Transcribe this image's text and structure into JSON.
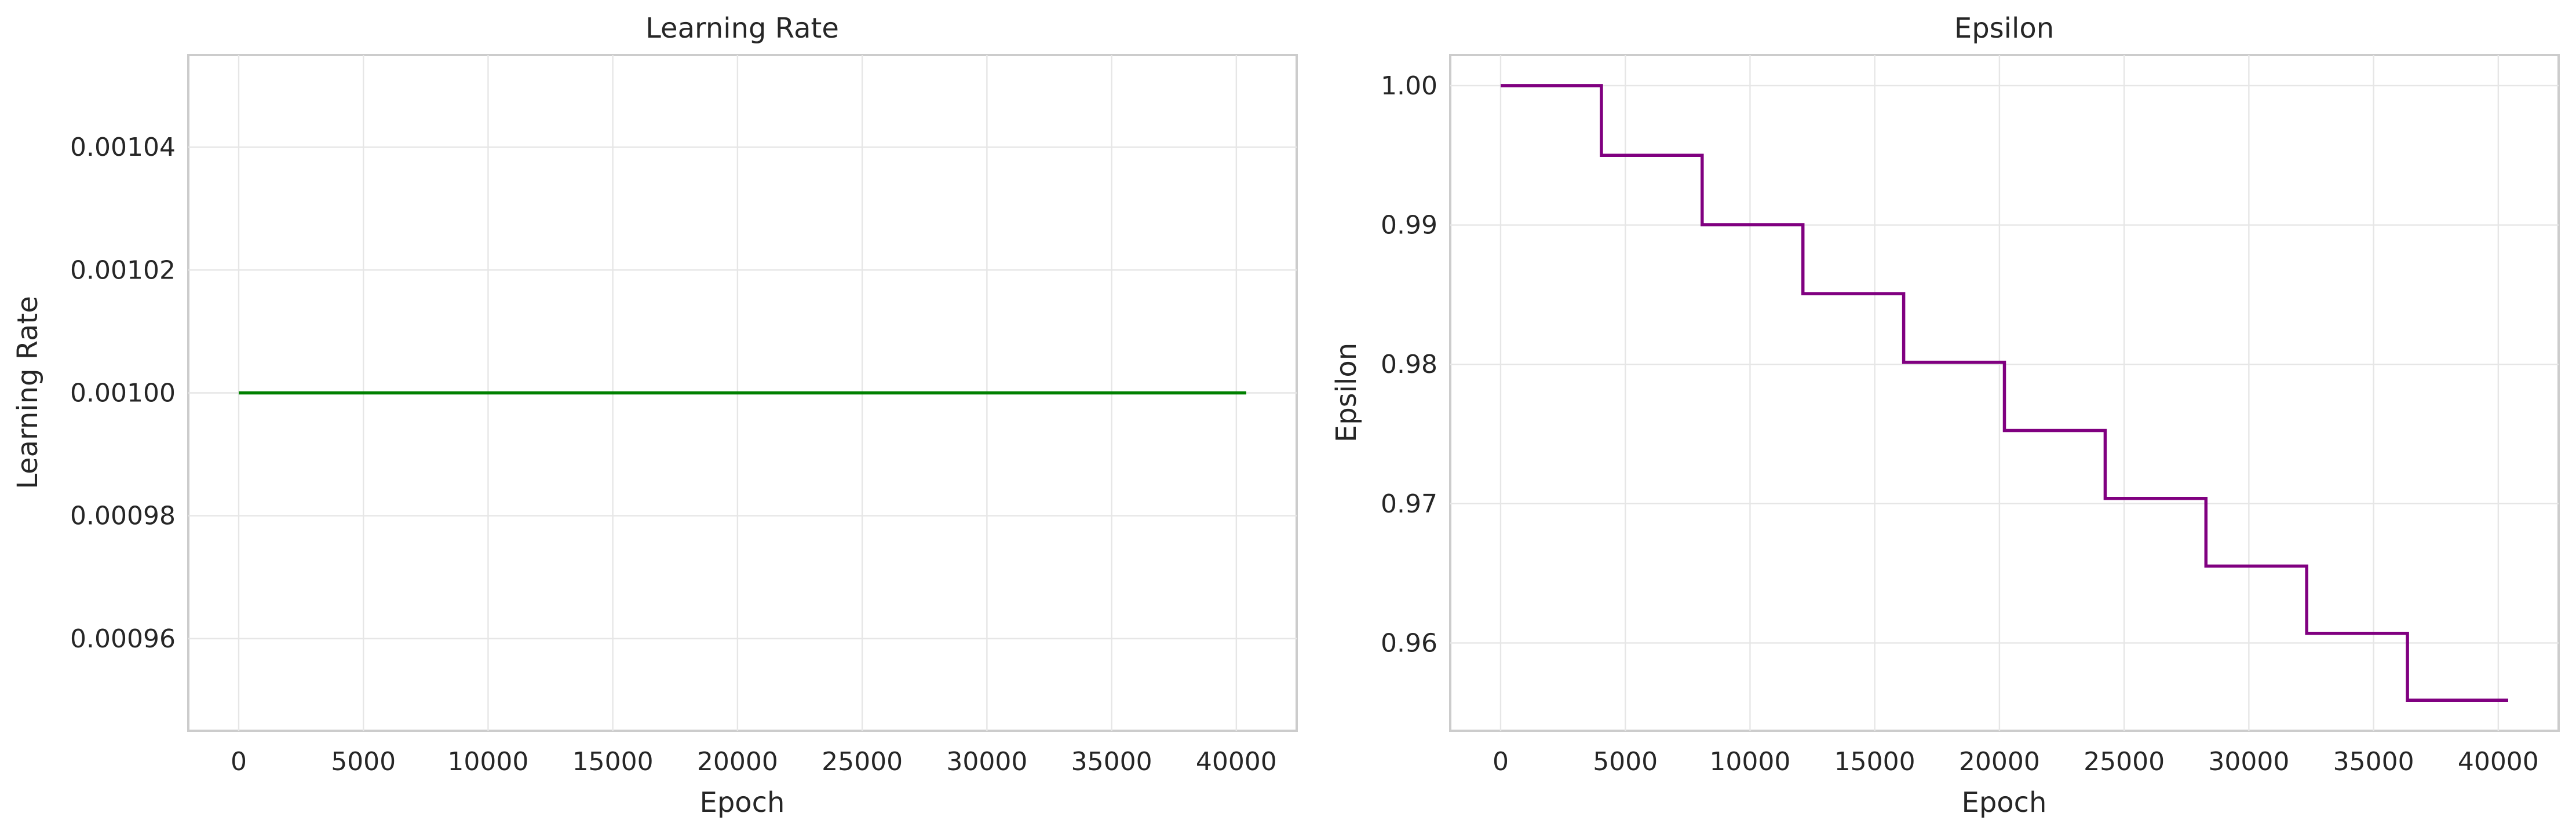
{
  "chart_data": [
    {
      "type": "line",
      "title": "Learning Rate",
      "xlabel": "Epoch",
      "ylabel": "Learning Rate",
      "xlim": [
        -2020,
        42420
      ],
      "ylim": [
        0.000945,
        0.001055
      ],
      "xticks": [
        0,
        5000,
        10000,
        15000,
        20000,
        25000,
        30000,
        35000,
        40000
      ],
      "xtick_labels": [
        "0",
        "5000",
        "10000",
        "15000",
        "20000",
        "25000",
        "30000",
        "35000",
        "40000"
      ],
      "yticks": [
        0.00096,
        0.00098,
        0.001,
        0.00102,
        0.00104
      ],
      "ytick_labels": [
        "0.00096",
        "0.00098",
        "0.00100",
        "0.00102",
        "0.00104"
      ],
      "grid": true,
      "color": "#008000",
      "series": [
        {
          "step": "post",
          "x": [
            0,
            40400
          ],
          "y": [
            0.001,
            0.001
          ]
        }
      ]
    },
    {
      "type": "line",
      "title": "Epsilon",
      "xlabel": "Epoch",
      "ylabel": "Epsilon",
      "xlim": [
        -2020,
        42420
      ],
      "ylim": [
        0.9537,
        1.0022
      ],
      "xticks": [
        0,
        5000,
        10000,
        15000,
        20000,
        25000,
        30000,
        35000,
        40000
      ],
      "xtick_labels": [
        "0",
        "5000",
        "10000",
        "15000",
        "20000",
        "25000",
        "30000",
        "35000",
        "40000"
      ],
      "yticks": [
        0.96,
        0.97,
        0.98,
        0.99,
        1.0
      ],
      "ytick_labels": [
        "0.96",
        "0.97",
        "0.98",
        "0.99",
        "1.00"
      ],
      "grid": true,
      "color": "#800080",
      "series": [
        {
          "step": "post",
          "x": [
            0,
            4040,
            8080,
            12120,
            16160,
            20200,
            24240,
            28280,
            32320,
            36360,
            40400
          ],
          "y": [
            1.0,
            0.995,
            0.990025,
            0.985075,
            0.98015,
            0.97525,
            0.970373,
            0.965521,
            0.960693,
            0.95589,
            0.95589
          ]
        }
      ]
    }
  ]
}
